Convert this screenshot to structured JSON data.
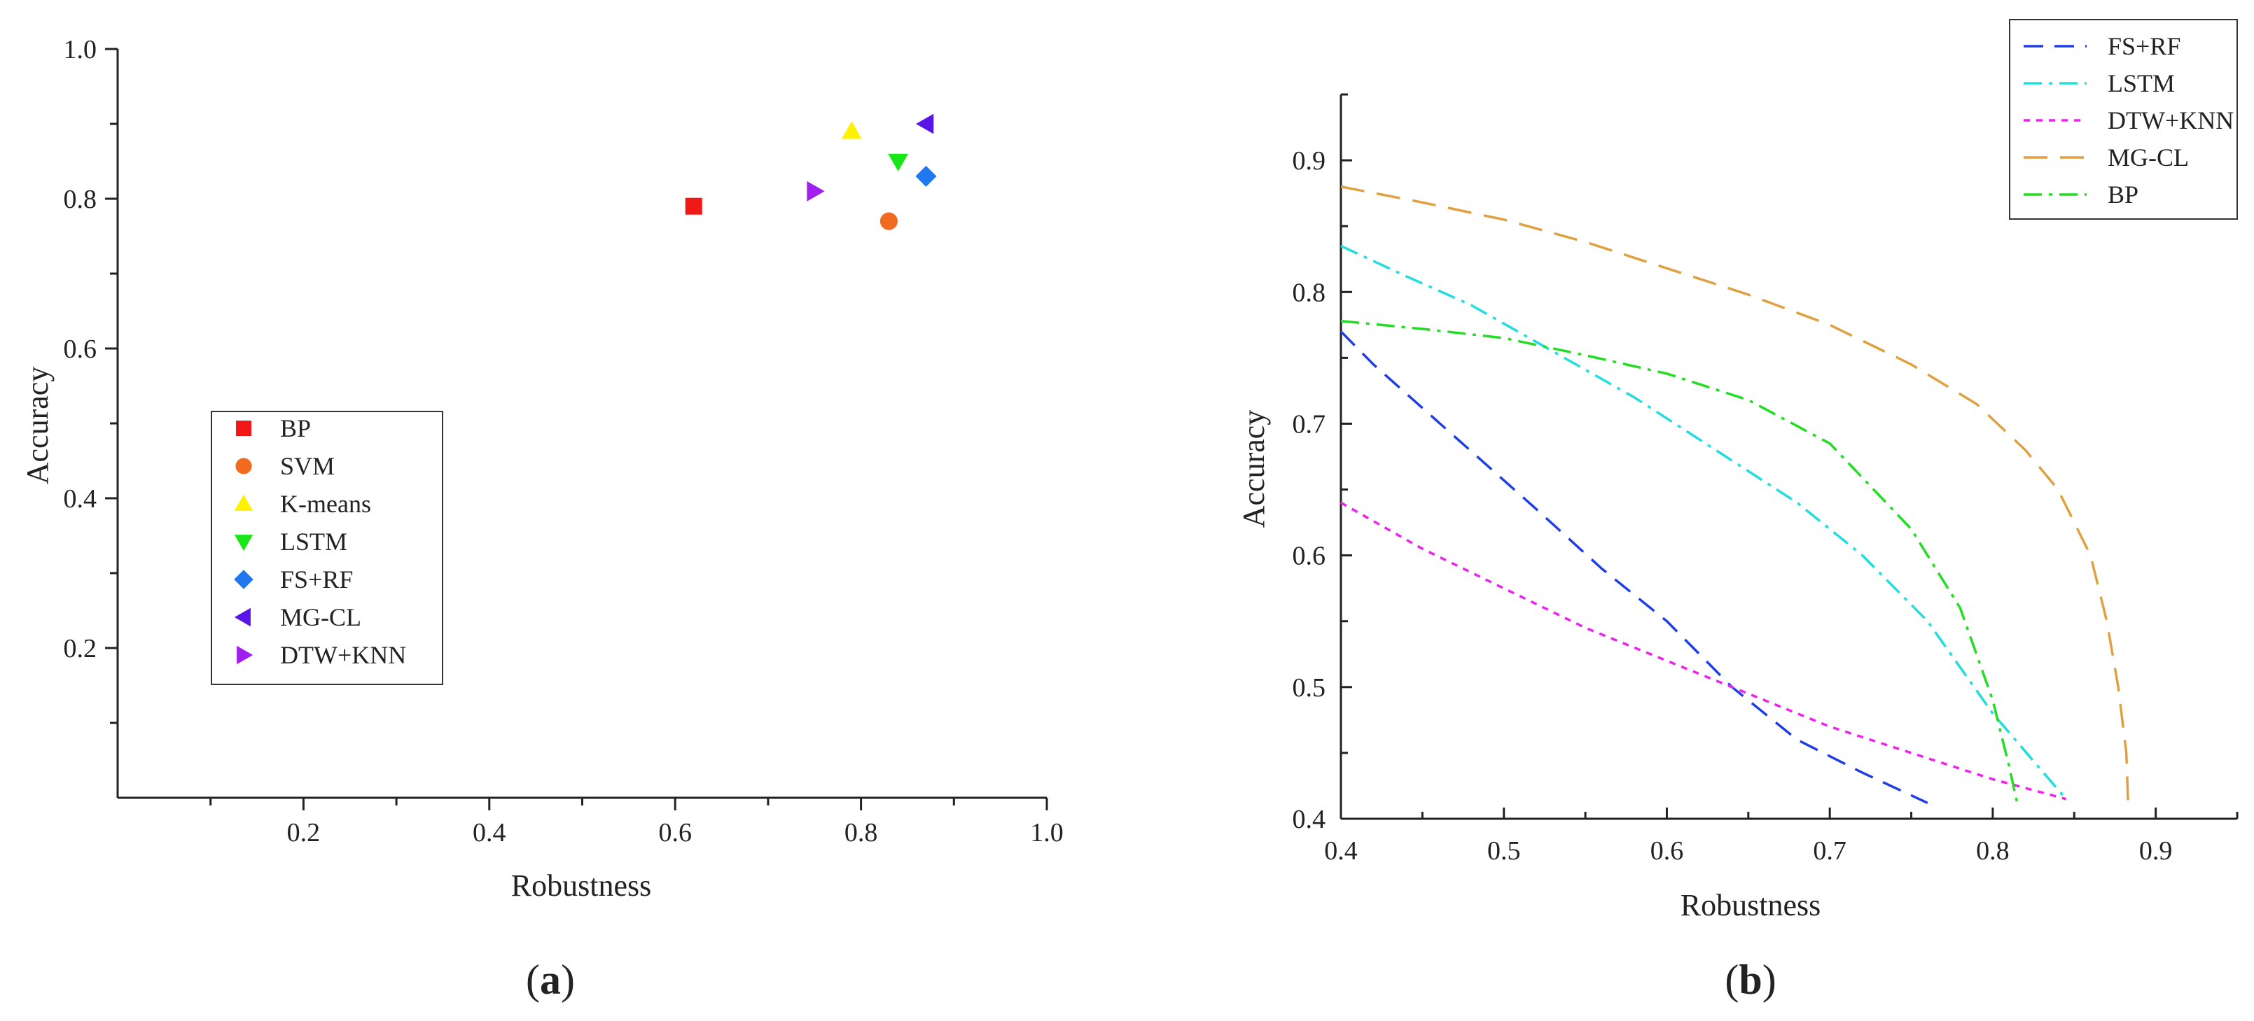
{
  "chart_data": [
    {
      "type": "scatter",
      "panel_label": "a",
      "xlabel": "Robustness",
      "ylabel": "Accuracy",
      "xlim": [
        0,
        1.0
      ],
      "ylim": [
        0,
        1.0
      ],
      "x_ticks": [
        0.2,
        0.4,
        0.6,
        0.8,
        1.0
      ],
      "x_tick_labels": [
        "0.2",
        "0.4",
        "0.6",
        "0.8",
        "1.0"
      ],
      "y_ticks": [
        0.2,
        0.4,
        0.6,
        0.8,
        1.0
      ],
      "y_tick_labels": [
        "0.2",
        "0.4",
        "0.6",
        "0.8",
        "1.0"
      ],
      "grid": false,
      "legend": "center-left",
      "series": [
        {
          "name": "BP",
          "marker": "square",
          "color": "#f01818",
          "points": [
            [
              0.62,
              0.79
            ]
          ]
        },
        {
          "name": "SVM",
          "marker": "circle",
          "color": "#f26a1e",
          "points": [
            [
              0.83,
              0.77
            ]
          ]
        },
        {
          "name": "K-means",
          "marker": "triangle-up",
          "color": "#fff200",
          "points": [
            [
              0.79,
              0.89
            ]
          ]
        },
        {
          "name": "LSTM",
          "marker": "triangle-down",
          "color": "#19e619",
          "points": [
            [
              0.84,
              0.85
            ]
          ]
        },
        {
          "name": "FS+RF",
          "marker": "diamond",
          "color": "#1e78f0",
          "points": [
            [
              0.87,
              0.83
            ]
          ]
        },
        {
          "name": "MG-CL",
          "marker": "triangle-left",
          "color": "#5a14e6",
          "points": [
            [
              0.87,
              0.9
            ]
          ]
        },
        {
          "name": "DTW+KNN",
          "marker": "triangle-right",
          "color": "#a020f0",
          "points": [
            [
              0.75,
              0.81
            ]
          ]
        }
      ]
    },
    {
      "type": "line",
      "panel_label": "b",
      "xlabel": "Robustness",
      "ylabel": "Accuracy",
      "xlim": [
        0.4,
        0.95
      ],
      "ylim": [
        0.4,
        0.95
      ],
      "x_ticks": [
        0.4,
        0.5,
        0.6,
        0.7,
        0.8,
        0.9
      ],
      "x_tick_labels": [
        "0.4",
        "0.5",
        "0.6",
        "0.7",
        "0.8",
        "0.9"
      ],
      "y_ticks": [
        0.4,
        0.5,
        0.6,
        0.7,
        0.8,
        0.9
      ],
      "y_tick_labels": [
        "0.4",
        "0.5",
        "0.6",
        "0.7",
        "0.8",
        "0.9"
      ],
      "grid": false,
      "legend": "top-right",
      "series": [
        {
          "name": "FS+RF",
          "color": "#1f3fe6",
          "dash": "dashed",
          "x": [
            0.4,
            0.42,
            0.47,
            0.52,
            0.56,
            0.6,
            0.64,
            0.68,
            0.72,
            0.76
          ],
          "y": [
            0.77,
            0.745,
            0.69,
            0.635,
            0.59,
            0.55,
            0.5,
            0.46,
            0.435,
            0.412
          ]
        },
        {
          "name": "LSTM",
          "color": "#22dddd",
          "dash": "dashdot",
          "x": [
            0.4,
            0.44,
            0.48,
            0.53,
            0.58,
            0.63,
            0.68,
            0.72,
            0.76,
            0.8,
            0.845
          ],
          "y": [
            0.835,
            0.812,
            0.79,
            0.755,
            0.72,
            0.68,
            0.64,
            0.6,
            0.55,
            0.48,
            0.415
          ]
        },
        {
          "name": "DTW+KNN",
          "color": "#f020f0",
          "dash": "dotted",
          "x": [
            0.4,
            0.45,
            0.5,
            0.55,
            0.6,
            0.65,
            0.7,
            0.75,
            0.8,
            0.845
          ],
          "y": [
            0.64,
            0.605,
            0.575,
            0.545,
            0.52,
            0.495,
            0.47,
            0.45,
            0.43,
            0.415
          ]
        },
        {
          "name": "MG-CL",
          "color": "#e0a040",
          "dash": "longdash",
          "x": [
            0.4,
            0.45,
            0.5,
            0.55,
            0.6,
            0.65,
            0.7,
            0.75,
            0.79,
            0.82,
            0.84,
            0.86,
            0.87,
            0.877,
            0.882,
            0.883
          ],
          "y": [
            0.88,
            0.868,
            0.855,
            0.838,
            0.818,
            0.798,
            0.775,
            0.745,
            0.715,
            0.68,
            0.65,
            0.6,
            0.55,
            0.5,
            0.45,
            0.413
          ]
        },
        {
          "name": "BP",
          "color": "#22dd22",
          "dash": "dashdot",
          "x": [
            0.4,
            0.45,
            0.5,
            0.55,
            0.6,
            0.65,
            0.7,
            0.75,
            0.78,
            0.8,
            0.81,
            0.815
          ],
          "y": [
            0.778,
            0.772,
            0.765,
            0.752,
            0.738,
            0.718,
            0.685,
            0.62,
            0.56,
            0.49,
            0.44,
            0.412
          ]
        }
      ]
    }
  ]
}
